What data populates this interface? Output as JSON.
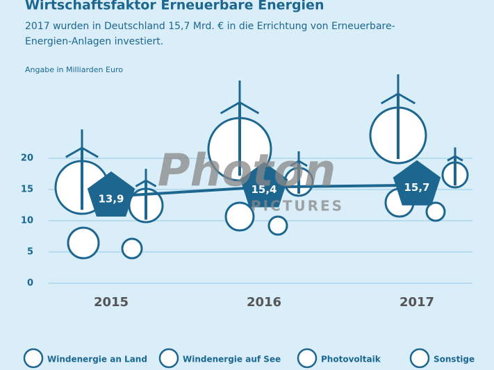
{
  "chart_data": {
    "type": "line",
    "title": "Wirtschaftsfaktor Erneuerbare Energien",
    "subtitle": "2017 wurden in Deutschland 15,7 Mrd. € in die Errichtung von Erneuerbare-Energien-Anlagen investiert.",
    "y_label": "Angabe in Milliarden Euro",
    "categories": [
      "2015",
      "2016",
      "2017"
    ],
    "values": [
      13.9,
      15.4,
      15.7
    ],
    "value_labels": [
      "13,9",
      "15,4",
      "15,7"
    ],
    "color": "#1c6690",
    "ylim": [
      0,
      20
    ],
    "yticks": [
      0,
      5,
      10,
      15,
      20
    ],
    "grid": true,
    "legend": [
      "Windenergie an Land",
      "Windenergie auf See",
      "Photovoltaik",
      "Sonstige"
    ],
    "watermark": [
      "Photon",
      "PICTURES"
    ]
  }
}
